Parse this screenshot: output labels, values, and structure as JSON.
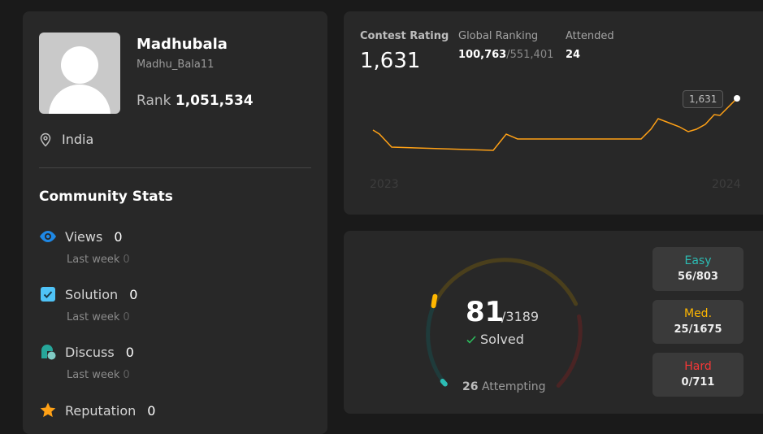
{
  "profile": {
    "name": "Madhubala",
    "username": "Madhu_Bala11",
    "rank_label": "Rank",
    "rank_value": "1,051,534",
    "location": "India"
  },
  "community": {
    "title": "Community Stats",
    "stats": [
      {
        "icon": "eye-icon",
        "label": "Views",
        "value": "0",
        "sub_label": "Last week",
        "sub_value": "0",
        "color": "#1e88e5"
      },
      {
        "icon": "check-square-icon",
        "label": "Solution",
        "value": "0",
        "sub_label": "Last week",
        "sub_value": "0",
        "color": "#4fc3f7"
      },
      {
        "icon": "discuss-icon",
        "label": "Discuss",
        "value": "0",
        "sub_label": "Last week",
        "sub_value": "0",
        "color": "#26a69a"
      },
      {
        "icon": "star-icon",
        "label": "Reputation",
        "value": "0",
        "color": "#ffa116"
      }
    ]
  },
  "contest": {
    "rating_label": "Contest Rating",
    "rating_value": "1,631",
    "global_label": "Global Ranking",
    "global_value": "100,763",
    "global_total": "/551,401",
    "attended_label": "Attended",
    "attended_value": "24",
    "year_start": "2023",
    "year_end": "2024",
    "tooltip": "1,631",
    "line_color": "#ffa116"
  },
  "progress": {
    "solved": "81",
    "total": "/3189",
    "solved_label": "Solved",
    "attempting_count": "26",
    "attempting_label": "Attempting",
    "difficulties": [
      {
        "label": "Easy",
        "value": "56/803",
        "color": "#2cbbb3"
      },
      {
        "label": "Med.",
        "value": "25/1675",
        "color": "#ffb700"
      },
      {
        "label": "Hard",
        "value": "0/711",
        "color": "#f63737"
      }
    ]
  }
}
